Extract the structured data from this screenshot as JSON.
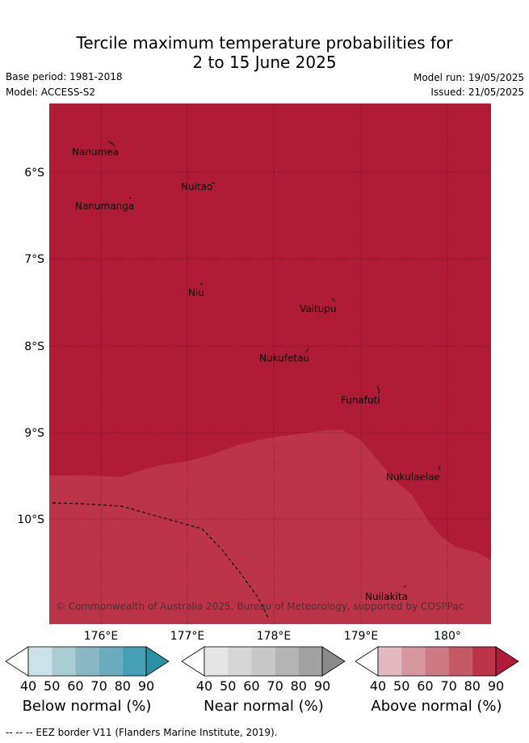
{
  "title": {
    "line1": "Tercile maximum temperature probabilities for",
    "line2": "2 to 15 June 2025"
  },
  "meta": {
    "base_period": "Base period: 1981-2018",
    "model": "Model: ACCESS-S2",
    "model_run": "Model run: 19/05/2025",
    "issued": "Issued: 21/05/2025"
  },
  "map": {
    "lat_labels": [
      "6°S",
      "7°S",
      "8°S",
      "9°S",
      "10°S"
    ],
    "lon_labels": [
      "176°E",
      "177°E",
      "178°E",
      "179°E",
      "180°"
    ],
    "colors": {
      "above_90": "#b01c38",
      "above_80": "#bc3449"
    },
    "places": [
      {
        "name": "Nanumea"
      },
      {
        "name": "Nuitao"
      },
      {
        "name": "Nanumanga"
      },
      {
        "name": "Niu"
      },
      {
        "name": "Vaitupu"
      },
      {
        "name": "Nukufetau"
      },
      {
        "name": "Funafuti"
      },
      {
        "name": "Nukulaelae"
      },
      {
        "name": "Nuilakita"
      }
    ],
    "copyright": "© Commonwealth of Australia 2025, Bureau of Meteorology, supported by COSPPac"
  },
  "colorbars": [
    {
      "label": "Below normal (%)",
      "ticks": [
        "40",
        "50",
        "60",
        "70",
        "80",
        "90"
      ],
      "colors": [
        "#ffffff",
        "#cbe3e8",
        "#a9cbd2",
        "#89b8c4",
        "#6aacbd",
        "#46a0b5",
        "#2b8fa6"
      ]
    },
    {
      "label": "Near normal (%)",
      "ticks": [
        "40",
        "50",
        "60",
        "70",
        "80",
        "90"
      ],
      "colors": [
        "#ffffff",
        "#e6e6e6",
        "#d6d6d6",
        "#c7c7c7",
        "#b4b4b4",
        "#a1a1a1",
        "#8a8a8a"
      ]
    },
    {
      "label": "Above normal (%)",
      "ticks": [
        "40",
        "50",
        "60",
        "70",
        "80",
        "90"
      ],
      "colors": [
        "#ffffff",
        "#e3b9c1",
        "#d7979f",
        "#cd7a84",
        "#c45966",
        "#bc3449",
        "#b01c38"
      ]
    }
  ],
  "footer": "-- -- -- EEZ border V11 (Flanders Marine Institute, 2019)."
}
